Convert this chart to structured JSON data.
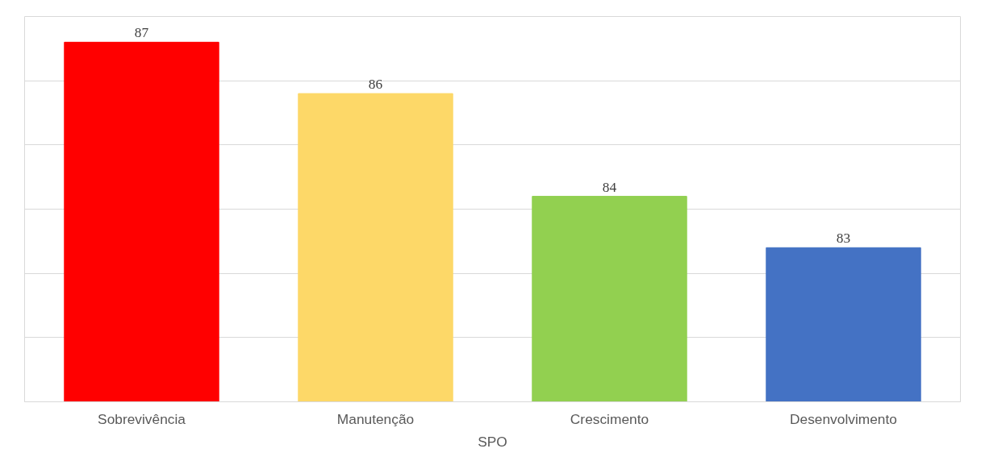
{
  "chart_data": {
    "type": "bar",
    "xlabel": "SPO",
    "categories": [
      "Sobrevivência",
      "Manutenção",
      "Crescimento",
      "Desenvolvimento"
    ],
    "values": [
      87,
      86,
      84,
      83
    ],
    "colors": [
      "#ff0000",
      "#fdd868",
      "#92d050",
      "#4472c4"
    ],
    "ylim": [
      80,
      87.5
    ],
    "yticks": [
      {
        "value": 80,
        "label": null
      },
      {
        "value": 81.25,
        "label": null
      },
      {
        "value": 82.5,
        "label": null
      },
      {
        "value": 83.75,
        "label": null
      },
      {
        "value": 85,
        "label": null
      },
      {
        "value": 86.25,
        "label": null
      },
      {
        "value": 87.5,
        "label": null
      }
    ],
    "tick_labels": "x",
    "grid": "y",
    "data_labels": true
  }
}
